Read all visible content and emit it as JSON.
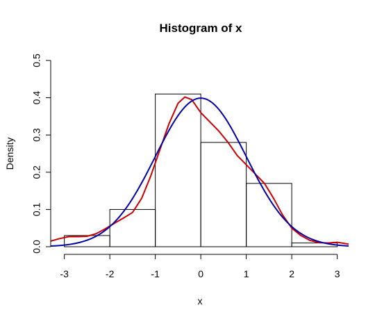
{
  "chart_data": {
    "type": "histogram",
    "title": "Histogram of x",
    "xlabel": "x",
    "ylabel": "Density",
    "xlim": [
      -3.3,
      3.25
    ],
    "ylim": [
      0,
      0.5
    ],
    "x_ticks": [
      -3,
      -2,
      -1,
      0,
      1,
      2,
      3
    ],
    "y_ticks": [
      0.0,
      0.1,
      0.2,
      0.3,
      0.4,
      0.5
    ],
    "y_tick_labels": [
      "0.0",
      "0.1",
      "0.2",
      "0.3",
      "0.4",
      "0.5"
    ],
    "bins": [
      {
        "from": -3,
        "to": -2,
        "density": 0.03
      },
      {
        "from": -2,
        "to": -1,
        "density": 0.1
      },
      {
        "from": -1,
        "to": 0,
        "density": 0.41
      },
      {
        "from": 0,
        "to": 1,
        "density": 0.28
      },
      {
        "from": 1,
        "to": 2,
        "density": 0.17
      },
      {
        "from": 2,
        "to": 3,
        "density": 0.01
      }
    ],
    "series": [
      {
        "type": "line",
        "color": "#cc0000",
        "points": [
          [
            -3.3,
            0.015
          ],
          [
            -3.1,
            0.022
          ],
          [
            -2.9,
            0.027
          ],
          [
            -2.7,
            0.027
          ],
          [
            -2.5,
            0.028
          ],
          [
            -2.3,
            0.035
          ],
          [
            -2.1,
            0.048
          ],
          [
            -1.9,
            0.063
          ],
          [
            -1.7,
            0.077
          ],
          [
            -1.5,
            0.092
          ],
          [
            -1.3,
            0.13
          ],
          [
            -1.1,
            0.19
          ],
          [
            -0.9,
            0.26
          ],
          [
            -0.7,
            0.33
          ],
          [
            -0.5,
            0.385
          ],
          [
            -0.35,
            0.402
          ],
          [
            -0.2,
            0.395
          ],
          [
            0.0,
            0.36
          ],
          [
            0.2,
            0.335
          ],
          [
            0.4,
            0.31
          ],
          [
            0.6,
            0.28
          ],
          [
            0.8,
            0.245
          ],
          [
            1.0,
            0.22
          ],
          [
            1.2,
            0.195
          ],
          [
            1.4,
            0.17
          ],
          [
            1.6,
            0.13
          ],
          [
            1.8,
            0.085
          ],
          [
            2.0,
            0.05
          ],
          [
            2.2,
            0.03
          ],
          [
            2.4,
            0.017
          ],
          [
            2.6,
            0.011
          ],
          [
            2.8,
            0.01
          ],
          [
            3.0,
            0.012
          ],
          [
            3.25,
            0.007
          ]
        ]
      },
      {
        "type": "line",
        "color": "#0000aa",
        "distribution": "normal",
        "mean": 0,
        "sd": 1
      }
    ]
  }
}
